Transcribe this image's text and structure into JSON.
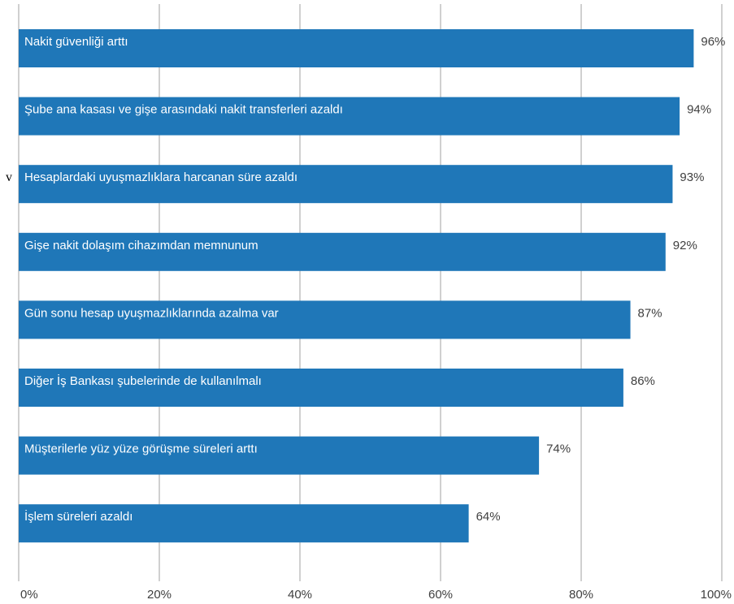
{
  "side_mark": "v",
  "chart_data": {
    "type": "bar",
    "orientation": "horizontal",
    "categories": [
      "Nakit güvenliği arttı",
      "Şube ana kasası ve gişe arasındaki nakit transferleri azaldı",
      "Hesaplardaki uyuşmazlıklara harcanan süre azaldı",
      "Gişe nakit dolaşım cihazımdan memnunum",
      "Gün sonu hesap uyuşmazlıklarında azalma var",
      "Diğer İş Bankası şubelerinde de kullanılmalı",
      "Müşterilerle yüz yüze görüşme süreleri arttı",
      "İşlem süreleri azaldı"
    ],
    "values": [
      96,
      94,
      93,
      92,
      87,
      86,
      74,
      64
    ],
    "value_labels": [
      "96%",
      "94%",
      "93%",
      "92%",
      "87%",
      "86%",
      "74%",
      "64%"
    ],
    "xlim": [
      0,
      100
    ],
    "xticks": [
      0,
      20,
      40,
      60,
      80,
      100
    ],
    "xtick_labels": [
      "0%",
      "20%",
      "40%",
      "60%",
      "80%",
      "100%"
    ],
    "grid": true,
    "bar_color": "#1f77b8",
    "grid_color": "#d0d0d0",
    "text_color": "#404040"
  }
}
